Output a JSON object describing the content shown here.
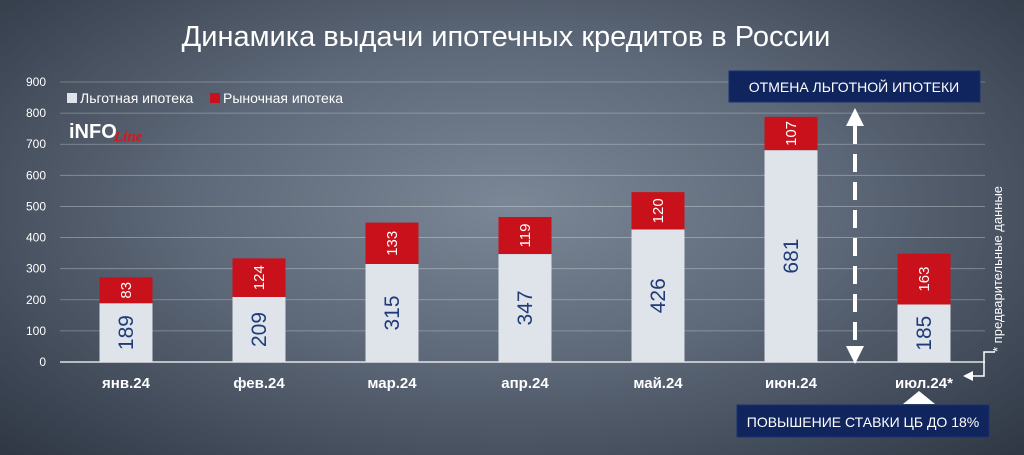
{
  "chart_data": {
    "type": "bar",
    "stacked": true,
    "title": "Динамика выдачи ипотечных кредитов в России",
    "categories": [
      "янв.24",
      "фев.24",
      "мар.24",
      "апр.24",
      "май.24",
      "июн.24",
      "июл.24*"
    ],
    "series": [
      {
        "name": "Льготная ипотека",
        "color": "#dfe3ea",
        "values": [
          189,
          209,
          315,
          347,
          426,
          681,
          185
        ]
      },
      {
        "name": "Рыночная ипотека",
        "color": "#c8111a",
        "values": [
          83,
          124,
          133,
          119,
          120,
          107,
          163
        ]
      }
    ],
    "ylim": [
      0,
      900
    ],
    "yticks": [
      0,
      100,
      200,
      300,
      400,
      500,
      600,
      700,
      800,
      900
    ],
    "grid": true,
    "legend": "top-left",
    "annotations": {
      "top_box": "ОТМЕНА ЛЬГОТНОЙ ИПОТЕКИ",
      "bottom_box": "ПОВЫШЕНИЕ СТАВКИ ЦБ ДО 18%",
      "footnote": "* предварительные данные"
    }
  },
  "logo": {
    "brand": "INFO",
    "suffix": "Line"
  },
  "colors": {
    "box_bg": "#10245e",
    "label_dark": "#1f3b78"
  }
}
